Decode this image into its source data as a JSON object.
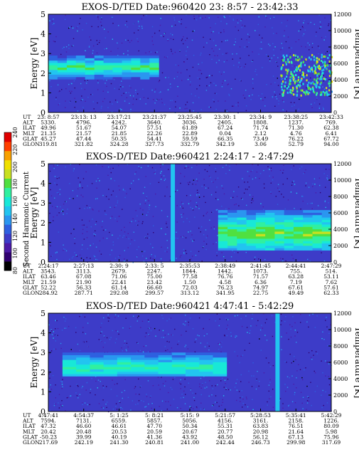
{
  "chart_data": [
    {
      "type": "heatmap",
      "title": "EXOS-D/TED Date:960420 23: 8:57 - 23:42:33",
      "ylabel": "Energy [eV]",
      "y2label": "Temperature [K]",
      "yticks": [
        "5",
        "4",
        "3",
        "2",
        "1",
        "0"
      ],
      "ylim": [
        0,
        5
      ],
      "y2ticks": [
        "12000",
        "10000",
        "8000",
        "6000",
        "4000",
        "2000",
        "0"
      ],
      "y2lim": [
        0,
        12000
      ],
      "row_labels": [
        "UT",
        "ALT",
        "ILAT",
        "MLT",
        "GLAT",
        "GLON"
      ],
      "columns": [
        [
          "23: 8:57",
          "5330.",
          "49.96",
          "21.35",
          "45.27",
          "319.81"
        ],
        [
          "23:13: 13",
          "4796.",
          "51.67",
          "21.57",
          "47.44",
          "321.82"
        ],
        [
          "23:17:21",
          "4242.",
          "54.07",
          "21.85",
          "50.35",
          "324.28"
        ],
        [
          "23:21:37",
          "3640.",
          "57.51",
          "22.26",
          "54.41",
          "327.73"
        ],
        [
          "23:25:45",
          "3036.",
          "61.89",
          "22.89",
          "59.59",
          "332.79"
        ],
        [
          "23:30: 1",
          "2405.",
          "67.24",
          "0.04",
          "66.35",
          "342.19"
        ],
        [
          "23:34: 9",
          "1808.",
          "71.74",
          "2.12",
          "73.49",
          "3.06"
        ],
        [
          "23:38:25",
          "1237.",
          "71.30",
          "4.76",
          "76.22",
          "52.79"
        ],
        [
          "23:42:33",
          "769.",
          "62.38",
          "6.41",
          "67.72",
          "94.00"
        ]
      ],
      "features": [
        {
          "kind": "band",
          "x_from": 0.0,
          "x_to": 0.39,
          "energy_low": 1.7,
          "energy_high": 2.8,
          "peak_energy": 2.25,
          "level": 175
        },
        {
          "kind": "patch",
          "x_from": 0.82,
          "x_to": 1.0,
          "energy_low": 0.9,
          "energy_high": 3.0,
          "level": 200
        }
      ]
    },
    {
      "type": "heatmap",
      "title": "EXOS-D/TED Date:960421 2:24:17 - 2:47:29",
      "ylabel": "Energy [eV]",
      "y2label": "Temperature [K]",
      "yticks": [
        "5",
        "4",
        "3",
        "2",
        "1",
        "0"
      ],
      "ylim": [
        0,
        5
      ],
      "y2ticks": [
        "12000",
        "10000",
        "8000",
        "6000",
        "4000",
        "2000",
        "0"
      ],
      "y2lim": [
        0,
        12000
      ],
      "row_labels": [
        "UT",
        "ALT",
        "ILAT",
        "MLT",
        "GLAT",
        "GLON"
      ],
      "columns": [
        [
          "2:24:17",
          "3543.",
          "63.46",
          "21.59",
          "52.22",
          "284.92"
        ],
        [
          "2:27:13",
          "3113.",
          "67.08",
          "21.90",
          "56.33",
          "287.71"
        ],
        [
          "2:30: 9",
          "2679.",
          "71.06",
          "22.41",
          "61.14",
          "292.08"
        ],
        [
          "2:33: 5",
          "2247.",
          "75.00",
          "23.42",
          "66.60",
          "299.57"
        ],
        [
          "2:35:53",
          "1844.",
          "77.58",
          "1.50",
          "72.03",
          "313.12"
        ],
        [
          "2:38:49",
          "1442.",
          "76.76",
          "4.58",
          "76.23",
          "341.95"
        ],
        [
          "2:41:45",
          "1073.",
          "71.57",
          "6.36",
          "74.97",
          "22.75"
        ],
        [
          "2:44:41",
          "755.",
          "63.28",
          "7.19",
          "67.61",
          "49.49"
        ],
        [
          "2:47:29",
          "514.",
          "53.11",
          "7.62",
          "57.61",
          "62.33"
        ]
      ],
      "features": [
        {
          "kind": "spike",
          "x_at": 0.44,
          "energy_low": 0.0,
          "energy_high": 5.0,
          "level": 150
        },
        {
          "kind": "band",
          "x_from": 0.6,
          "x_to": 1.0,
          "energy_low": 0.6,
          "energy_high": 2.6,
          "peak_energy": 1.4,
          "level": 185
        }
      ]
    },
    {
      "type": "heatmap",
      "title": "EXOS-D/TED Date:960421 4:47:41 - 5:42:29",
      "ylabel": "Energy [eV]",
      "y2label": "Temperature [K]",
      "yticks": [
        "5",
        "4",
        "3",
        "2",
        "1",
        "0"
      ],
      "ylim": [
        0,
        5
      ],
      "y2ticks": [
        "12000",
        "10000",
        "8000",
        "6000",
        "4000",
        "2000",
        "0"
      ],
      "y2lim": [
        0,
        12000
      ],
      "row_labels": [
        "UT",
        "ALT",
        "ILAT",
        "MLT",
        "GLAT",
        "GLON"
      ],
      "columns": [
        [
          "4:47:41",
          "7594.",
          "47.32",
          "20.42",
          "-50.23",
          "217.69"
        ],
        [
          "4:54:37",
          "7131.",
          "46.60",
          "20.48",
          "39.99",
          "242.19"
        ],
        [
          "5: 1:25",
          "6559.",
          "46.61",
          "20.53",
          "40.19",
          "241.30"
        ],
        [
          "5: 8:21",
          "5857.",
          "47.70",
          "20.59",
          "41.36",
          "240.81"
        ],
        [
          "5:15: 9",
          "5056.",
          "50.34",
          "20.67",
          "43.92",
          "241.00"
        ],
        [
          "5:21:57",
          "4156.",
          "55.31",
          "20.77",
          "48.50",
          "242.44"
        ],
        [
          "5:28:53",
          "3161.",
          "63.83",
          "20.98",
          "56.12",
          "246.73"
        ],
        [
          "5:35:41",
          "2158.",
          "76.51",
          "21.64",
          "67.13",
          "299.98"
        ],
        [
          "5:42:29",
          "1226.",
          "80.09",
          "5.98",
          "75.96",
          "317.69"
        ]
      ],
      "features": [
        {
          "kind": "band",
          "x_from": 0.05,
          "x_to": 0.63,
          "energy_low": 1.8,
          "energy_high": 2.9,
          "peak_energy": 2.2,
          "level": 170
        },
        {
          "kind": "spike",
          "x_at": 0.81,
          "energy_low": 0.0,
          "energy_high": 5.0,
          "level": 150
        }
      ]
    }
  ],
  "colorbar": {
    "label": "Second Harmonic Current",
    "ticks": [
      "240",
      "220",
      "200",
      "180",
      "160",
      "140",
      "120",
      "100",
      "80"
    ],
    "range": [
      80,
      240
    ],
    "colors": [
      "#000000",
      "#300070",
      "#4b1aa6",
      "#3d3cc8",
      "#2e60e0",
      "#2a96f0",
      "#22c4f0",
      "#18e8d8",
      "#30f0a0",
      "#50e040",
      "#c8e020",
      "#f0e000",
      "#f8a000",
      "#ff4000",
      "#e00000"
    ]
  }
}
